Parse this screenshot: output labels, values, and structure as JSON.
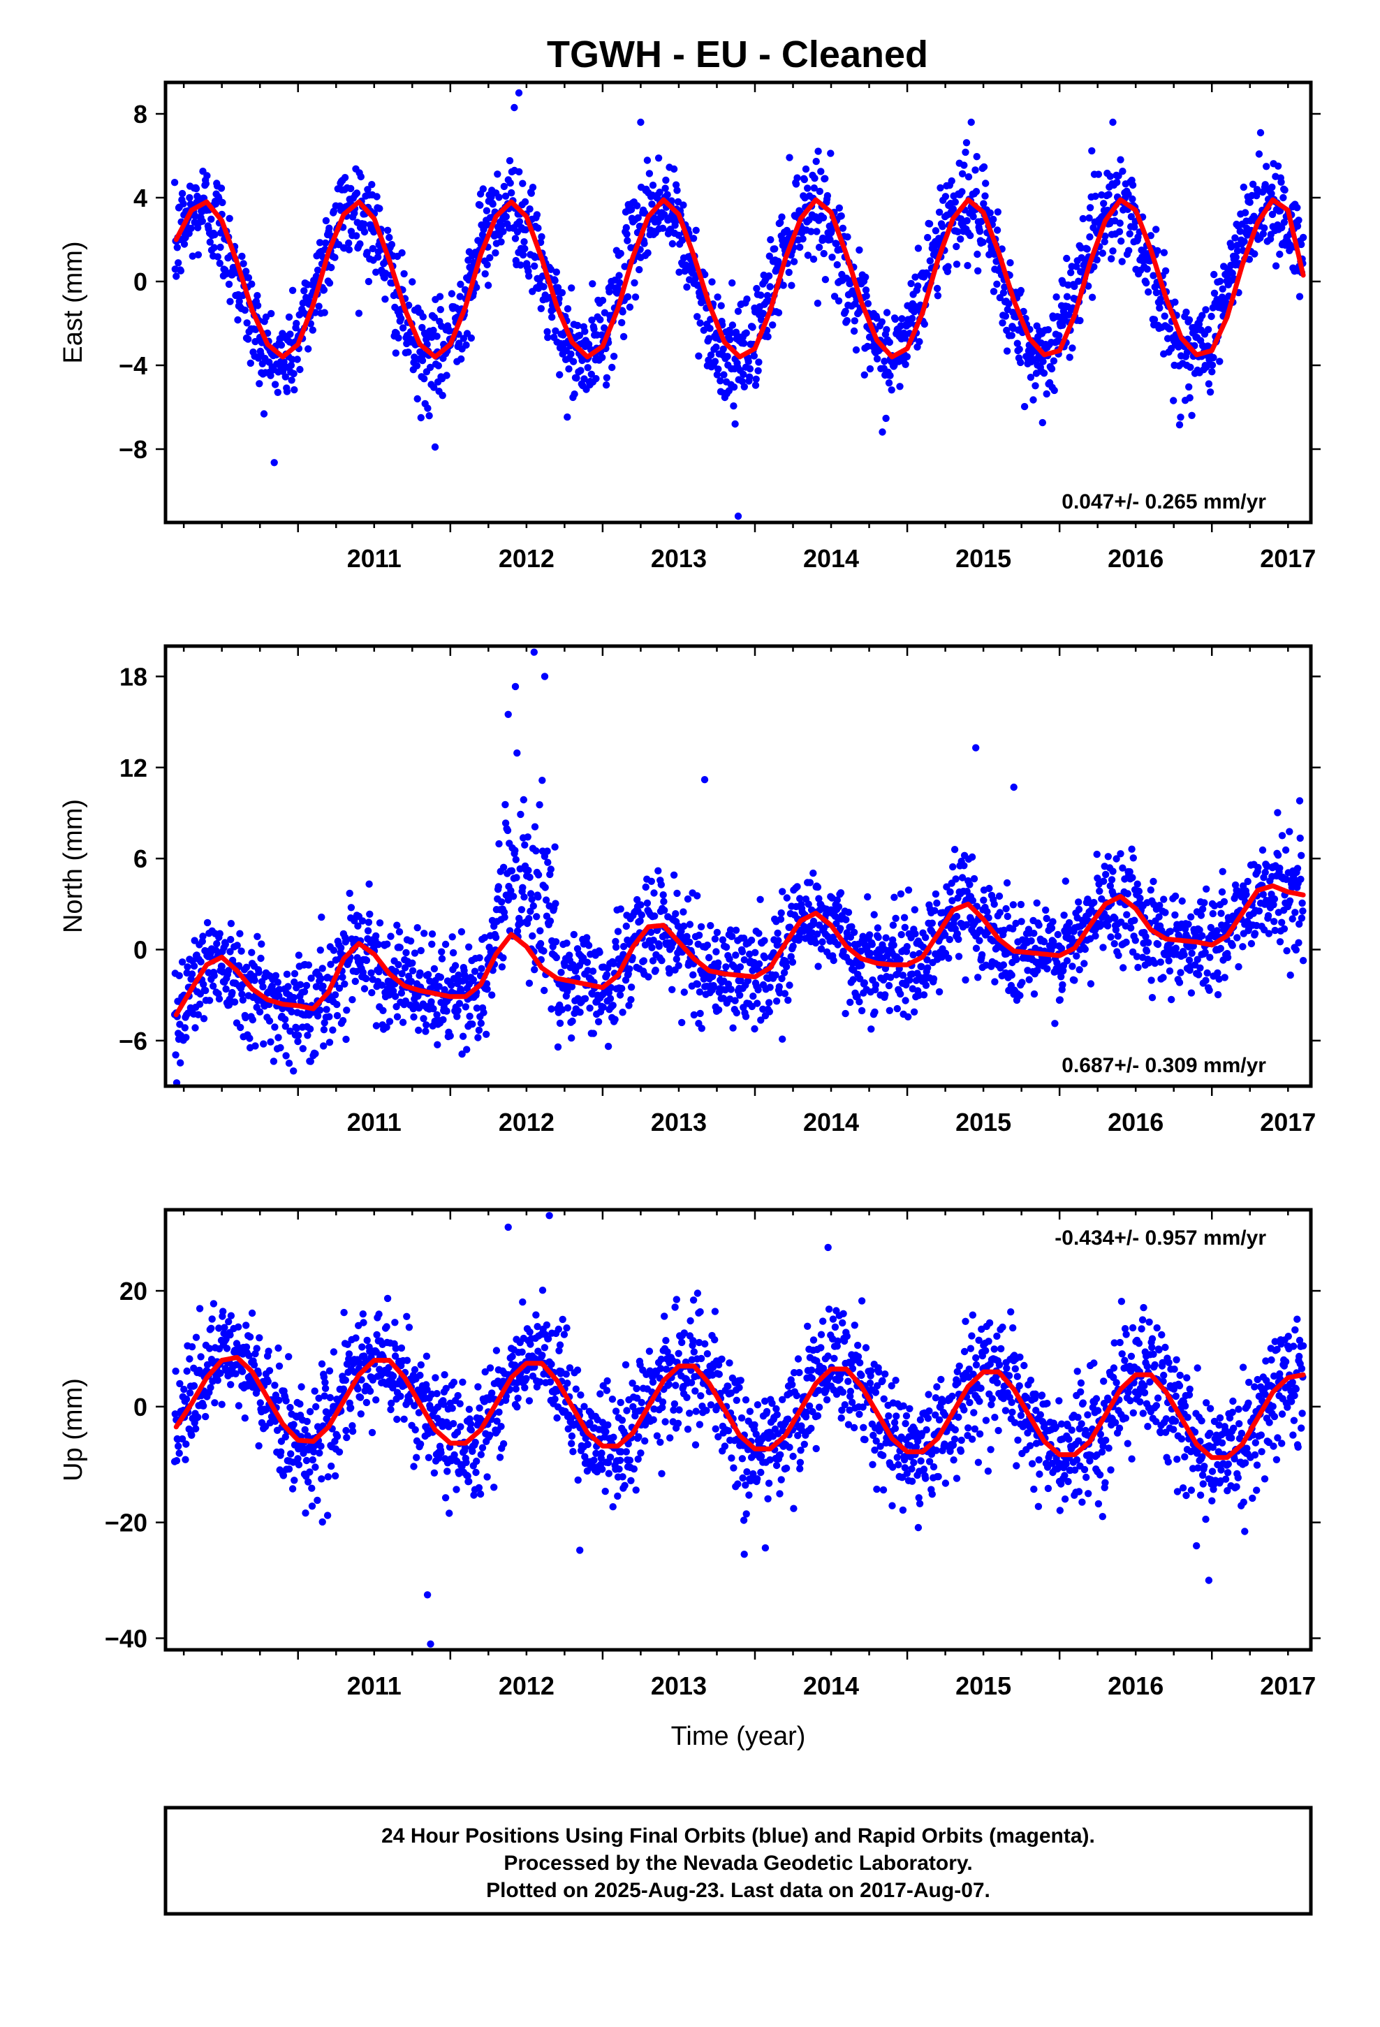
{
  "title": "TGWH  - EU - Cleaned",
  "colors": {
    "points_final": "#0000ff",
    "fit_line": "#ff0000",
    "frame": "#000000"
  },
  "chart_data": [
    {
      "type": "scatter",
      "panel": "east",
      "ylabel": "East (mm)",
      "xlabel": "",
      "rate_text": "0.047+/- 0.265 mm/yr",
      "rate_position": "bottom-right",
      "xlim": [
        2010.13,
        2017.65
      ],
      "ylim": [
        -11.5,
        9.5
      ],
      "x_ticks": [
        2011,
        2012,
        2013,
        2014,
        2015,
        2016,
        2017
      ],
      "x_tick_labels": [
        "2011",
        "2012",
        "2013",
        "2014",
        "2015",
        "2016",
        "2017"
      ],
      "y_ticks": [
        8,
        4,
        0,
        -4,
        -8
      ],
      "y_tick_labels": [
        "8",
        "4",
        "0",
        "−4",
        "−8"
      ],
      "series": [
        {
          "kind": "fit",
          "x": [
            2010.2,
            2010.3,
            2010.4,
            2010.5,
            2010.6,
            2010.7,
            2010.8,
            2010.9,
            2011.0,
            2011.1,
            2011.2,
            2011.3,
            2011.4,
            2011.5,
            2011.6,
            2011.7,
            2011.8,
            2011.9,
            2012.0,
            2012.1,
            2012.2,
            2012.3,
            2012.4,
            2012.5,
            2012.6,
            2012.7,
            2012.8,
            2012.9,
            2013.0,
            2013.1,
            2013.2,
            2013.3,
            2013.4,
            2013.5,
            2013.6,
            2013.7,
            2013.8,
            2013.9,
            2014.0,
            2014.1,
            2014.2,
            2014.3,
            2014.4,
            2014.5,
            2014.6,
            2014.7,
            2014.8,
            2014.9,
            2015.0,
            2015.1,
            2015.2,
            2015.3,
            2015.4,
            2015.5,
            2015.6,
            2015.7,
            2015.8,
            2015.9,
            2016.0,
            2016.1,
            2016.2,
            2016.3,
            2016.4,
            2016.5,
            2016.6,
            2016.7,
            2016.8,
            2016.9,
            2017.0,
            2017.1,
            2017.2,
            2017.3,
            2017.4,
            2017.5,
            2017.6
          ],
          "y": [
            2.0,
            3.4,
            3.8,
            2.9,
            0.9,
            -1.4,
            -3.0,
            -3.6,
            -3.0,
            -1.1,
            1.4,
            3.2,
            3.8,
            3.0,
            1.0,
            -1.3,
            -3.0,
            -3.6,
            -3.0,
            -1.2,
            1.3,
            3.1,
            3.8,
            3.1,
            1.1,
            -1.2,
            -2.9,
            -3.6,
            -3.1,
            -1.3,
            1.2,
            3.1,
            3.9,
            3.2,
            1.2,
            -1.1,
            -2.9,
            -3.6,
            -3.2,
            -1.4,
            1.1,
            3.0,
            3.9,
            3.3,
            1.3,
            -1.0,
            -2.8,
            -3.6,
            -3.2,
            -1.5,
            1.0,
            3.0,
            3.9,
            3.3,
            1.4,
            -0.9,
            -2.7,
            -3.5,
            -3.3,
            -1.6,
            0.9,
            2.9,
            3.9,
            3.4,
            1.5,
            -0.8,
            -2.7,
            -3.5,
            -3.3,
            -1.7,
            0.8,
            2.8,
            3.9,
            3.4,
            0.3
          ]
        },
        {
          "kind": "points",
          "model": "seasonal",
          "amplitude": 3.7,
          "phase_peak": 0.37,
          "rate": 0.047,
          "noise_sd": 1.2,
          "count": 2200
        }
      ],
      "outliers": [
        {
          "x": 2012.45,
          "y": 9.0
        },
        {
          "x": 2012.42,
          "y": 8.3
        },
        {
          "x": 2013.25,
          "y": 7.6
        },
        {
          "x": 2015.42,
          "y": 7.6
        },
        {
          "x": 2016.35,
          "y": 7.6
        },
        {
          "x": 2017.32,
          "y": 7.1
        },
        {
          "x": 2013.89,
          "y": -11.2
        },
        {
          "x": 2011.9,
          "y": -7.9
        },
        {
          "x": 2013.87,
          "y": -6.8
        }
      ]
    },
    {
      "type": "scatter",
      "panel": "north",
      "ylabel": "North (mm)",
      "xlabel": "",
      "rate_text": "0.687+/- 0.309 mm/yr",
      "rate_position": "bottom-right",
      "xlim": [
        2010.13,
        2017.65
      ],
      "ylim": [
        -9,
        20
      ],
      "x_ticks": [
        2011,
        2012,
        2013,
        2014,
        2015,
        2016,
        2017
      ],
      "x_tick_labels": [
        "2011",
        "2012",
        "2013",
        "2014",
        "2015",
        "2016",
        "2017"
      ],
      "y_ticks": [
        18,
        12,
        6,
        0,
        -6
      ],
      "y_tick_labels": [
        "18",
        "12",
        "6",
        "0",
        "−6"
      ],
      "series": [
        {
          "kind": "fit",
          "x": [
            2010.2,
            2010.3,
            2010.4,
            2010.5,
            2010.6,
            2010.7,
            2010.8,
            2010.9,
            2011.0,
            2011.1,
            2011.2,
            2011.3,
            2011.4,
            2011.5,
            2011.6,
            2011.7,
            2011.8,
            2011.9,
            2012.0,
            2012.1,
            2012.2,
            2012.3,
            2012.4,
            2012.5,
            2012.6,
            2012.7,
            2012.8,
            2012.9,
            2013.0,
            2013.1,
            2013.2,
            2013.3,
            2013.4,
            2013.5,
            2013.6,
            2013.7,
            2013.8,
            2013.9,
            2014.0,
            2014.1,
            2014.2,
            2014.3,
            2014.4,
            2014.5,
            2014.6,
            2014.7,
            2014.8,
            2014.9,
            2015.0,
            2015.1,
            2015.2,
            2015.3,
            2015.4,
            2015.5,
            2015.6,
            2015.7,
            2015.8,
            2015.9,
            2016.0,
            2016.1,
            2016.2,
            2016.3,
            2016.4,
            2016.5,
            2016.6,
            2016.7,
            2016.8,
            2016.9,
            2017.0,
            2017.1,
            2017.2,
            2017.3,
            2017.4,
            2017.5,
            2017.6
          ],
          "y": [
            -4.3,
            -2.6,
            -1.0,
            -0.5,
            -1.4,
            -2.6,
            -3.3,
            -3.6,
            -3.7,
            -3.9,
            -2.8,
            -0.6,
            0.4,
            -0.3,
            -1.6,
            -2.4,
            -2.7,
            -2.9,
            -3.1,
            -3.1,
            -2.3,
            -0.3,
            1.0,
            0.2,
            -1.2,
            -1.9,
            -2.1,
            -2.3,
            -2.5,
            -1.7,
            0.2,
            1.5,
            1.6,
            0.5,
            -0.6,
            -1.4,
            -1.6,
            -1.7,
            -1.8,
            -1.2,
            0.4,
            1.9,
            2.4,
            1.6,
            0.2,
            -0.6,
            -0.9,
            -1.0,
            -1.0,
            -0.5,
            1.0,
            2.6,
            3.0,
            2.0,
            0.7,
            -0.1,
            -0.2,
            -0.3,
            -0.4,
            0.1,
            1.6,
            3.0,
            3.5,
            2.7,
            1.3,
            0.7,
            0.6,
            0.5,
            0.3,
            0.9,
            2.4,
            3.9,
            4.2,
            3.8,
            3.6
          ]
        },
        {
          "kind": "points",
          "model": "follows-fit",
          "noise_sd": 1.7,
          "count": 2200
        }
      ],
      "outliers": [
        {
          "x": 2012.38,
          "y": 15.5
        },
        {
          "x": 2012.55,
          "y": 19.6
        },
        {
          "x": 2012.62,
          "y": 18.0
        },
        {
          "x": 2013.67,
          "y": 11.2
        },
        {
          "x": 2015.45,
          "y": 13.3
        },
        {
          "x": 2015.7,
          "y": 10.7
        },
        {
          "x": 2010.97,
          "y": -8.0
        },
        {
          "x": 2014.18,
          "y": -5.9
        }
      ]
    },
    {
      "type": "scatter",
      "panel": "up",
      "ylabel": "Up (mm)",
      "xlabel": "Time (year)",
      "rate_text": "-0.434+/- 0.957 mm/yr",
      "rate_position": "top-right",
      "xlim": [
        2010.13,
        2017.65
      ],
      "ylim": [
        -42,
        34
      ],
      "x_ticks": [
        2011,
        2012,
        2013,
        2014,
        2015,
        2016,
        2017
      ],
      "x_tick_labels": [
        "2011",
        "2012",
        "2013",
        "2014",
        "2015",
        "2016",
        "2017"
      ],
      "y_ticks": [
        20,
        0,
        -20,
        -40
      ],
      "y_tick_labels": [
        "20",
        "0",
        "−20",
        "−40"
      ],
      "series": [
        {
          "kind": "fit",
          "x": [
            2010.2,
            2010.3,
            2010.4,
            2010.5,
            2010.6,
            2010.7,
            2010.8,
            2010.9,
            2011.0,
            2011.1,
            2011.2,
            2011.3,
            2011.4,
            2011.5,
            2011.6,
            2011.7,
            2011.8,
            2011.9,
            2012.0,
            2012.1,
            2012.2,
            2012.3,
            2012.4,
            2012.5,
            2012.6,
            2012.7,
            2012.8,
            2012.9,
            2013.0,
            2013.1,
            2013.2,
            2013.3,
            2013.4,
            2013.5,
            2013.6,
            2013.7,
            2013.8,
            2013.9,
            2014.0,
            2014.1,
            2014.2,
            2014.3,
            2014.4,
            2014.5,
            2014.6,
            2014.7,
            2014.8,
            2014.9,
            2015.0,
            2015.1,
            2015.2,
            2015.3,
            2015.4,
            2015.5,
            2015.6,
            2015.7,
            2015.8,
            2015.9,
            2016.0,
            2016.1,
            2016.2,
            2016.3,
            2016.4,
            2016.5,
            2016.6,
            2016.7,
            2016.8,
            2016.9,
            2017.0,
            2017.1,
            2017.2,
            2017.3,
            2017.4,
            2017.5,
            2017.6
          ],
          "y": [
            -3.5,
            0.5,
            5.0,
            8.0,
            8.5,
            6.0,
            1.5,
            -3.0,
            -5.8,
            -6.0,
            -3.5,
            1.0,
            5.5,
            8.0,
            8.0,
            5.0,
            0.5,
            -4.0,
            -6.3,
            -6.3,
            -4.0,
            0.5,
            5.0,
            7.5,
            7.5,
            4.5,
            0.0,
            -4.5,
            -6.8,
            -6.8,
            -4.5,
            0.0,
            4.5,
            7.0,
            7.0,
            4.0,
            -0.5,
            -5.0,
            -7.3,
            -7.3,
            -5.0,
            -0.5,
            4.0,
            6.5,
            6.5,
            3.5,
            -1.0,
            -5.5,
            -7.8,
            -7.8,
            -5.5,
            -1.0,
            3.5,
            6.0,
            6.0,
            3.0,
            -1.5,
            -6.0,
            -8.3,
            -8.3,
            -6.0,
            -1.5,
            3.0,
            5.5,
            5.5,
            2.5,
            -2.0,
            -6.5,
            -8.8,
            -8.8,
            -6.5,
            -2.0,
            2.5,
            5.0,
            5.5
          ]
        },
        {
          "kind": "points",
          "model": "follows-fit",
          "noise_sd": 5.0,
          "count": 2200
        }
      ],
      "outliers": [
        {
          "x": 2012.38,
          "y": 31.0
        },
        {
          "x": 2012.65,
          "y": 33.0
        },
        {
          "x": 2014.48,
          "y": 27.5
        },
        {
          "x": 2011.87,
          "y": -41.0
        },
        {
          "x": 2011.85,
          "y": -32.5
        },
        {
          "x": 2016.98,
          "y": -30.0
        },
        {
          "x": 2013.93,
          "y": -25.5
        },
        {
          "x": 2012.85,
          "y": -24.8
        }
      ]
    }
  ],
  "footer": {
    "line1": "24 Hour Positions Using Final Orbits (blue) and Rapid Orbits (magenta).",
    "line2": "Processed by the Nevada Geodetic Laboratory.",
    "line3": "Plotted on 2025-Aug-23. Last data on 2017-Aug-07."
  }
}
